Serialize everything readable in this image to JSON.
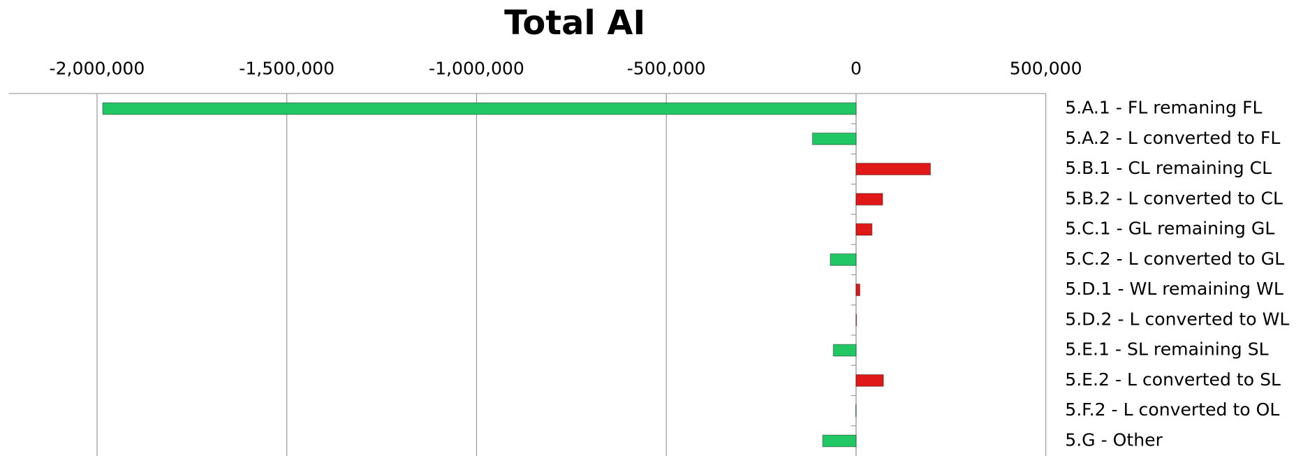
{
  "chart_data": {
    "type": "barh",
    "title": "Total AI",
    "categories": [
      "5.A.1 - FL remaning FL",
      "5.A.2 - L converted to FL",
      "5.B.1 - CL remaining CL",
      "5.B.2 - L converted to CL",
      "5.C.1 - GL remaining GL",
      "5.C.2 - L converted to GL",
      "5.D.1 - WL remaining WL",
      "5.D.2 - L converted to WL",
      "5.E.1 - SL remaining SL",
      "5.E.2 - L converted to SL",
      "5.F.2 - L converted to OL",
      "5.G - Other"
    ],
    "values": [
      -1985000,
      -115000,
      196000,
      70000,
      42000,
      -68000,
      10000,
      1000,
      -60000,
      72000,
      -1000,
      -88000
    ],
    "color_negative": "#22c765",
    "color_positive": "#e01818",
    "xlim": [
      -2233000,
      500000
    ],
    "xticks": [
      {
        "value": -2000000,
        "label": "-2,000,000"
      },
      {
        "value": -1500000,
        "label": "-1,500,000"
      },
      {
        "value": -1000000,
        "label": "-1,000,000"
      },
      {
        "value": -500000,
        "label": "-500,000"
      },
      0,
      {
        "value": 500000,
        "label": "500,000"
      }
    ],
    "grid": true
  }
}
